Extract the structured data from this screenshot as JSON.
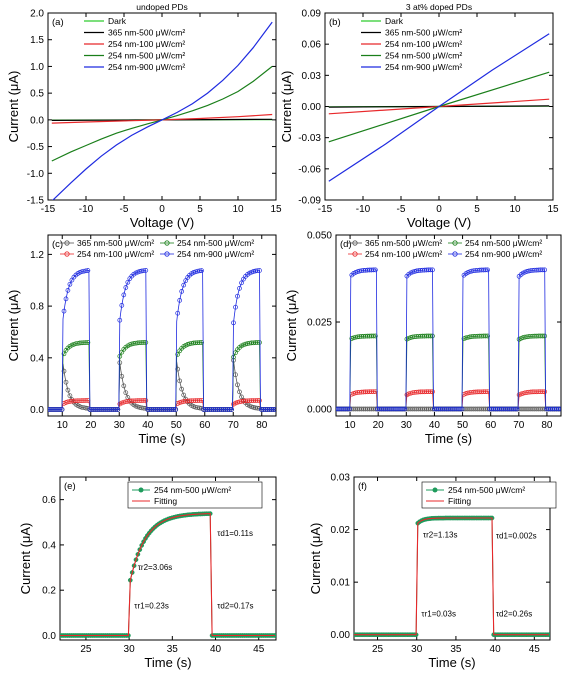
{
  "colors": {
    "black": "#000000",
    "red": "#e8282b",
    "green": "#1a7f1a",
    "dark_green": "#0d6b2a",
    "blue": "#1f2be0",
    "light_green": "#2ecc2e",
    "teal_green": "#1e9b5c",
    "gray": "#555555"
  },
  "chart_data": [
    {
      "id": "a",
      "panel_label": "(a)",
      "type": "line",
      "title": "undoped PDs",
      "xlabel": "Voltage (V)",
      "ylabel": "Current (μA)",
      "xlim": [
        -15,
        15
      ],
      "ylim": [
        -1.5,
        2.0
      ],
      "xticks": [
        "-15",
        "-10",
        "-5",
        "0",
        "5",
        "10",
        "15"
      ],
      "yticks": [
        "-1.5",
        "-1.0",
        "-0.5",
        "0.0",
        "0.5",
        "1.0",
        "1.5",
        "2.0"
      ],
      "legend": [
        "Dark",
        "365 nm-500 μW/cm²",
        "254 nm-100 μW/cm²",
        "254 nm-500 μW/cm²",
        "254 nm-900 μW/cm²"
      ],
      "series": [
        {
          "name": "Dark",
          "color": "#2ecc2e",
          "x": [
            -14.5,
            0,
            14.5
          ],
          "y": [
            -0.005,
            0,
            0.005
          ]
        },
        {
          "name": "365 nm-500 μW/cm²",
          "color": "#000000",
          "x": [
            -14.5,
            0,
            14.5
          ],
          "y": [
            -0.01,
            0,
            0.01
          ]
        },
        {
          "name": "254 nm-100 μW/cm²",
          "color": "#e8282b",
          "x": [
            -14.5,
            -10,
            -5,
            0,
            5,
            10,
            14.5
          ],
          "y": [
            -0.06,
            -0.04,
            -0.02,
            0,
            0.025,
            0.06,
            0.1
          ]
        },
        {
          "name": "254 nm-500 μW/cm²",
          "color": "#1a7f1a",
          "x": [
            -14.5,
            -12,
            -10,
            -8,
            -6,
            -4,
            -2,
            0,
            2,
            4,
            6,
            8,
            10,
            12,
            14.5
          ],
          "y": [
            -0.77,
            -0.6,
            -0.48,
            -0.36,
            -0.25,
            -0.16,
            -0.08,
            0,
            0.08,
            0.17,
            0.27,
            0.39,
            0.53,
            0.72,
            1.0
          ]
        },
        {
          "name": "254 nm-900 μW/cm²",
          "color": "#1f2be0",
          "x": [
            -14.5,
            -12,
            -10,
            -8,
            -6,
            -4,
            -2,
            0,
            2,
            4,
            6,
            8,
            10,
            12,
            14.5
          ],
          "y": [
            -1.52,
            -1.18,
            -0.92,
            -0.68,
            -0.47,
            -0.29,
            -0.14,
            0,
            0.14,
            0.3,
            0.5,
            0.74,
            1.02,
            1.35,
            1.83
          ]
        }
      ]
    },
    {
      "id": "b",
      "panel_label": "(b)",
      "type": "line",
      "title": "3 at% doped PDs",
      "xlabel": "Voltage (V)",
      "ylabel": "Current (μA)",
      "xlim": [
        -15,
        15
      ],
      "ylim": [
        -0.09,
        0.09
      ],
      "xticks": [
        "-15",
        "-10",
        "-5",
        "0",
        "5",
        "10",
        "15"
      ],
      "yticks": [
        "-0.09",
        "-0.06",
        "-0.03",
        "0.00",
        "0.03",
        "0.06",
        "0.09"
      ],
      "legend": [
        "Dark",
        "365 nm-500 μW/cm²",
        "254 nm-100 μW/cm²",
        "254 nm-500 μW/cm²",
        "254 nm-900 μW/cm²"
      ],
      "series": [
        {
          "name": "Dark",
          "color": "#2ecc2e",
          "x": [
            -14.5,
            0,
            14.5
          ],
          "y": [
            -0.0003,
            0,
            0.0003
          ]
        },
        {
          "name": "365 nm-500 μW/cm²",
          "color": "#000000",
          "x": [
            -14.5,
            0,
            14.5
          ],
          "y": [
            -0.0006,
            0,
            0.0006
          ]
        },
        {
          "name": "254 nm-100 μW/cm²",
          "color": "#e8282b",
          "x": [
            -14.5,
            0,
            14.5
          ],
          "y": [
            -0.007,
            0,
            0.007
          ]
        },
        {
          "name": "254 nm-500 μW/cm²",
          "color": "#1a7f1a",
          "x": [
            -14.5,
            0,
            14.5
          ],
          "y": [
            -0.034,
            0,
            0.033
          ]
        },
        {
          "name": "254 nm-900 μW/cm²",
          "color": "#1f2be0",
          "x": [
            -14.5,
            -7,
            0,
            7,
            14.5
          ],
          "y": [
            -0.072,
            -0.036,
            0,
            0.035,
            0.07
          ]
        }
      ]
    },
    {
      "id": "c",
      "panel_label": "(c)",
      "type": "line",
      "xlabel": "Time (s)",
      "ylabel": "Current (μA)",
      "xlim": [
        5,
        85
      ],
      "ylim": [
        -0.05,
        1.35
      ],
      "xticks": [
        "10",
        "20",
        "30",
        "40",
        "50",
        "60",
        "70",
        "80"
      ],
      "yticks": [
        "0.0",
        "0.4",
        "0.8",
        "1.2"
      ],
      "legend": [
        "365 nm-500 μW/cm²",
        "254 nm-500 μW/cm²",
        "254 nm-100 μW/cm²",
        "254 nm-900 μW/cm²"
      ],
      "on_times": [
        10,
        30,
        50,
        70
      ],
      "off_times": [
        19.5,
        39.5,
        59.5,
        79.5
      ],
      "series": [
        {
          "name": "365 nm-500 μW/cm²",
          "color": "#555555",
          "start": 0.4,
          "plateau": 0.005
        },
        {
          "name": "254 nm-100 μW/cm²",
          "color": "#e8282b",
          "start": 0.04,
          "plateau": 0.07
        },
        {
          "name": "254 nm-500 μW/cm²",
          "color": "#1a7f1a",
          "start": 0.4,
          "plateau": 0.52
        },
        {
          "name": "254 nm-900 μW/cm²",
          "color": "#1f2be0",
          "start": 0.65,
          "plateau": 1.08
        }
      ]
    },
    {
      "id": "d",
      "panel_label": "(d)",
      "type": "line",
      "xlabel": "Time (s)",
      "ylabel": "Current (μA)",
      "xlim": [
        5,
        85
      ],
      "ylim": [
        -0.002,
        0.05
      ],
      "xticks": [
        "10",
        "20",
        "30",
        "40",
        "50",
        "60",
        "70",
        "80"
      ],
      "yticks": [
        "0.000",
        "0.025",
        "0.050"
      ],
      "legend": [
        "365 nm-500 μW/cm²",
        "254 nm-500 μW/cm²",
        "254 nm-100 μW/cm²",
        "254 nm-900 μW/cm²"
      ],
      "on_times": [
        10,
        30,
        50,
        70
      ],
      "off_times": [
        19.5,
        39.5,
        59.5,
        79.5
      ],
      "series": [
        {
          "name": "365 nm-500 μW/cm²",
          "color": "#555555",
          "start": 0.0,
          "plateau": 0.0
        },
        {
          "name": "254 nm-100 μW/cm²",
          "color": "#e8282b",
          "start": 0.004,
          "plateau": 0.005
        },
        {
          "name": "254 nm-500 μW/cm²",
          "color": "#1a7f1a",
          "start": 0.02,
          "plateau": 0.021
        },
        {
          "name": "254 nm-900 μW/cm²",
          "color": "#1f2be0",
          "start": 0.038,
          "plateau": 0.04
        }
      ]
    },
    {
      "id": "e",
      "panel_label": "(e)",
      "type": "line",
      "xlabel": "Time (s)",
      "ylabel": "Current (μA)",
      "xlim": [
        22,
        47
      ],
      "ylim": [
        -0.02,
        0.7
      ],
      "xticks": [
        "25",
        "30",
        "35",
        "40",
        "45"
      ],
      "yticks": [
        "0.0",
        "0.2",
        "0.4",
        "0.6"
      ],
      "legend": [
        "254 nm-500 μW/cm²",
        "Fitting"
      ],
      "annotations": [
        {
          "text": "τr2=3.06s",
          "x": 31.0,
          "y": 0.29
        },
        {
          "text": "τd1=0.11s",
          "x": 40.2,
          "y": 0.44
        },
        {
          "text": "τr1=0.23s",
          "x": 30.6,
          "y": 0.12
        },
        {
          "text": "τd2=0.17s",
          "x": 40.2,
          "y": 0.12
        }
      ],
      "on_time": 30,
      "off_time": 39.5,
      "start": 0.22,
      "plateau": 0.54,
      "series": [
        {
          "name": "254 nm-500 μW/cm²",
          "color": "#1e9b5c"
        },
        {
          "name": "Fitting",
          "color": "#e8282b"
        }
      ]
    },
    {
      "id": "f",
      "panel_label": "(f)",
      "type": "line",
      "xlabel": "Time (s)",
      "ylabel": "Current (μA)",
      "xlim": [
        22,
        47
      ],
      "ylim": [
        -0.001,
        0.03
      ],
      "xticks": [
        "25",
        "30",
        "35",
        "40",
        "45"
      ],
      "yticks": [
        "0.00",
        "0.01",
        "0.02",
        "0.03"
      ],
      "legend": [
        "254 nm-500 μW/cm²",
        "Fitting"
      ],
      "annotations": [
        {
          "text": "τr2=1.13s",
          "x": 30.8,
          "y": 0.0185
        },
        {
          "text": "τd1=0.002s",
          "x": 40.1,
          "y": 0.0183
        },
        {
          "text": "τr1=0.03s",
          "x": 30.6,
          "y": 0.0035
        },
        {
          "text": "τd2=0.26s",
          "x": 40.1,
          "y": 0.0035
        }
      ],
      "on_time": 30,
      "off_time": 39.6,
      "start": 0.021,
      "plateau": 0.0222,
      "series": [
        {
          "name": "254 nm-500 μW/cm²",
          "color": "#1e9b5c"
        },
        {
          "name": "Fitting",
          "color": "#e8282b"
        }
      ]
    }
  ]
}
